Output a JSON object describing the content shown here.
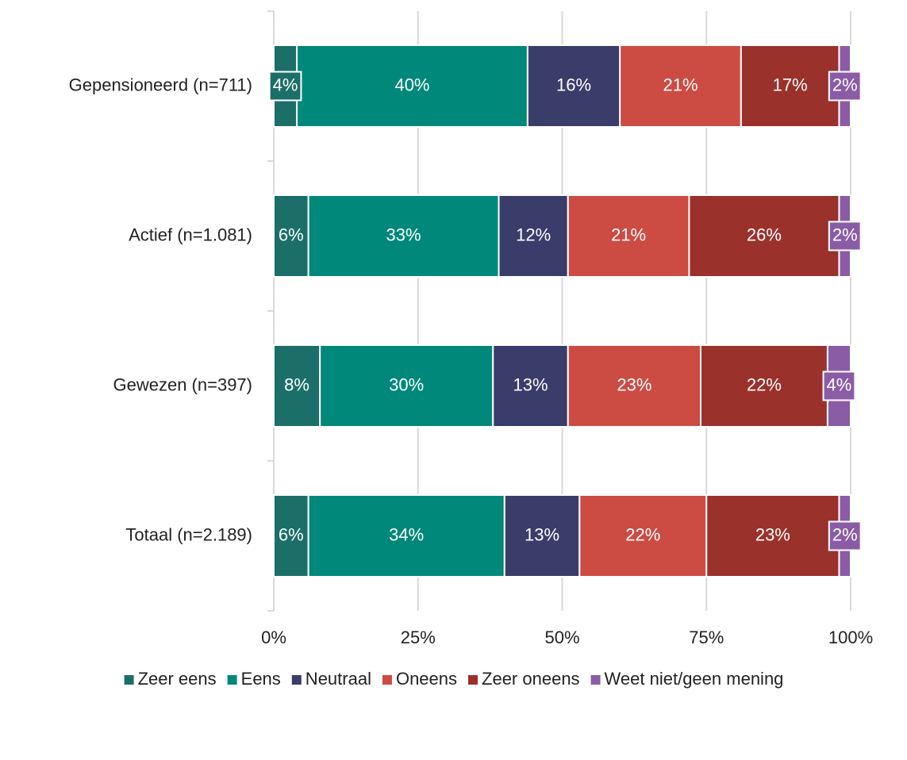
{
  "chart_data": {
    "type": "stacked-bar-horizontal",
    "categories": [
      "Gepensioneerd (n=711)",
      "Actief (n=1.081)",
      "Gewezen (n=397)",
      "Totaal (n=2.189)"
    ],
    "series": [
      {
        "name": "Zeer eens",
        "color": "#1b6f68",
        "values": [
          4,
          6,
          8,
          6
        ],
        "value_labels": [
          "4%",
          "6%",
          "8%",
          "6%"
        ]
      },
      {
        "name": "Eens",
        "color": "#00887b",
        "values": [
          40,
          33,
          30,
          34
        ],
        "value_labels": [
          "40%",
          "33%",
          "30%",
          "34%"
        ]
      },
      {
        "name": "Neutraal",
        "color": "#3a3c6a",
        "values": [
          16,
          12,
          13,
          13
        ],
        "value_labels": [
          "16%",
          "12%",
          "13%",
          "13%"
        ]
      },
      {
        "name": "Oneens",
        "color": "#cc4b43",
        "values": [
          21,
          21,
          23,
          22
        ],
        "value_labels": [
          "21%",
          "21%",
          "23%",
          "22%"
        ]
      },
      {
        "name": "Zeer oneens",
        "color": "#9b312b",
        "values": [
          17,
          26,
          22,
          23
        ],
        "value_labels": [
          "17%",
          "26%",
          "22%",
          "23%"
        ]
      },
      {
        "name": "Weet niet/geen mening",
        "color": "#8b5ca6",
        "values": [
          2,
          2,
          4,
          2
        ],
        "value_labels": [
          "2%",
          "2%",
          "4%",
          "2%"
        ]
      }
    ],
    "xlim": [
      0,
      100
    ],
    "xticks": [
      {
        "value": 0,
        "label": "0%"
      },
      {
        "value": 25,
        "label": "25%"
      },
      {
        "value": 50,
        "label": "50%"
      },
      {
        "value": 75,
        "label": "75%"
      },
      {
        "value": 100,
        "label": "100%"
      }
    ],
    "grid": true,
    "legend": "bottom"
  }
}
